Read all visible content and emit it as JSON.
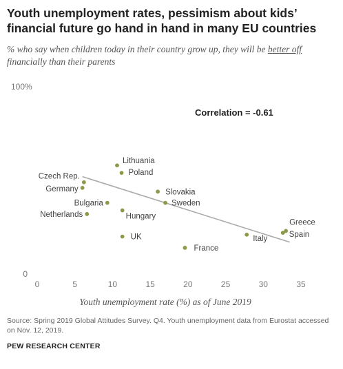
{
  "title_line1": "Youth unemployment rates, pessimism about kids’",
  "title_line2": "financial future go hand in hand in many EU countries",
  "subtitle_part1": "% who say when children today in their country grow up, they will be ",
  "subtitle_underlined": "better off",
  "subtitle_part2": " financially than their parents",
  "source": "Source: Spring 2019 Global Attitudes Survey. Q4. Youth unemployment data from Eurostat accessed on Nov. 12, 2019.",
  "brand": "PEW RESEARCH CENTER",
  "chart_data": {
    "type": "scatter",
    "xlabel": "Youth unemployment rate (%) as of June 2019",
    "ylabel": "",
    "xlim": [
      0,
      35
    ],
    "ylim": [
      0,
      100
    ],
    "x_ticks": [
      "0",
      "5",
      "10",
      "15",
      "20",
      "25",
      "30",
      "35"
    ],
    "y_ticks": [
      "0",
      "100%"
    ],
    "grid": false,
    "annotation": "Correlation = -0.61",
    "point_color": "#8a9a49",
    "trendline": {
      "x": [
        6,
        33.5
      ],
      "y": [
        52,
        17
      ]
    },
    "points": [
      {
        "label": "Lithuania",
        "x": 10.6,
        "y": 58
      },
      {
        "label": "Poland",
        "x": 11.2,
        "y": 54
      },
      {
        "label": "Czech Rep.",
        "x": 6.2,
        "y": 49
      },
      {
        "label": "Germany",
        "x": 6.0,
        "y": 46
      },
      {
        "label": "Slovakia",
        "x": 16.0,
        "y": 44
      },
      {
        "label": "Bulgaria",
        "x": 9.3,
        "y": 38
      },
      {
        "label": "Sweden",
        "x": 17.0,
        "y": 38
      },
      {
        "label": "Hungary",
        "x": 11.3,
        "y": 34
      },
      {
        "label": "Netherlands",
        "x": 6.6,
        "y": 32
      },
      {
        "label": "UK",
        "x": 11.3,
        "y": 20
      },
      {
        "label": "France",
        "x": 19.6,
        "y": 14
      },
      {
        "label": "Italy",
        "x": 27.8,
        "y": 21
      },
      {
        "label": "Greece",
        "x": 33.0,
        "y": 23
      },
      {
        "label": "Spain",
        "x": 32.6,
        "y": 22
      }
    ]
  }
}
